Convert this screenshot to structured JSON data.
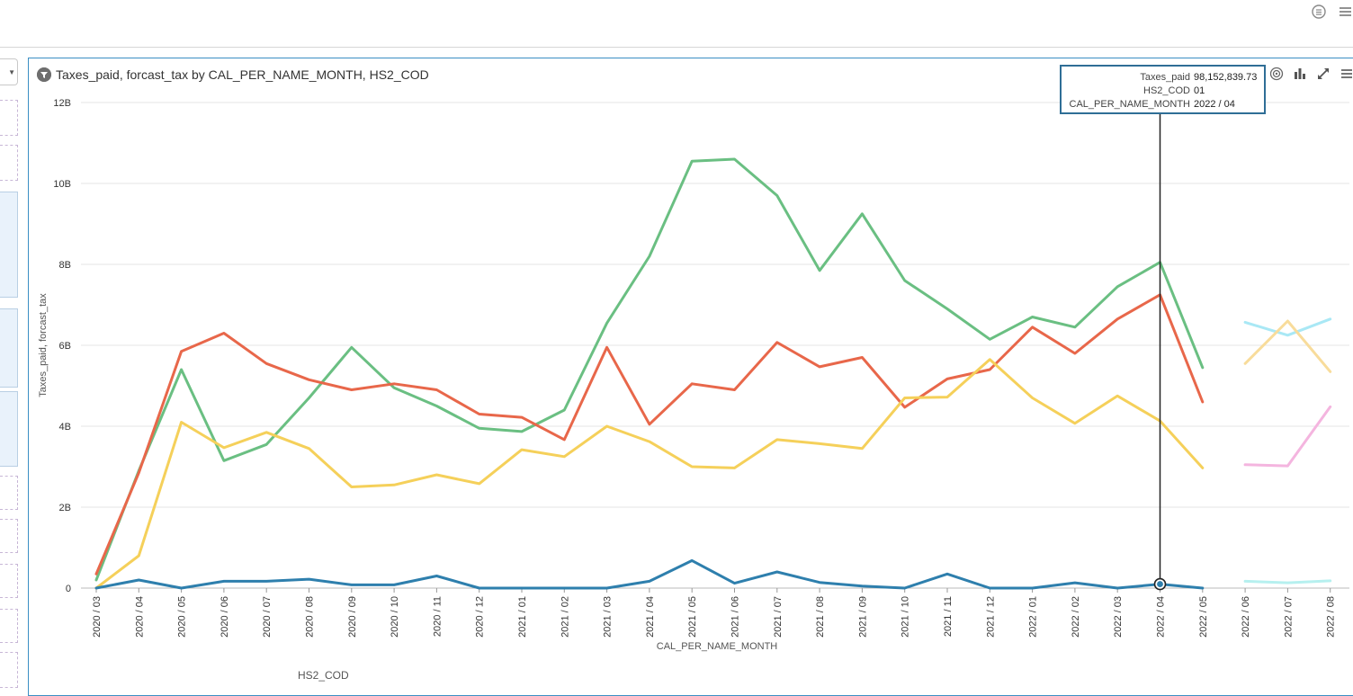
{
  "topbar": {
    "icons": [
      "list-circle-icon",
      "hamburger-menu-icon"
    ]
  },
  "left_rail": {
    "dropdown_icon": "chevron-down-icon"
  },
  "panel": {
    "title": "Taxes_paid, forcast_tax by CAL_PER_NAME_MONTH, HS2_COD",
    "title_icon": "filter-icon",
    "tools": [
      "target-icon",
      "bar-chart-icon",
      "expand-icon",
      "menu-icon"
    ]
  },
  "tooltip": {
    "rows": [
      {
        "key": "Taxes_paid",
        "value": "98,152,839.73"
      },
      {
        "key": "HS2_COD",
        "value": "01"
      },
      {
        "key": "CAL_PER_NAME_MONTH",
        "value": "2022 / 04"
      }
    ]
  },
  "legend": {
    "title": "HS2_COD"
  },
  "chart_data": {
    "type": "line",
    "title": "Taxes_paid, forcast_tax by CAL_PER_NAME_MONTH, HS2_COD",
    "xlabel": "CAL_PER_NAME_MONTH",
    "ylabel": "Taxes_paid, forcast_tax",
    "ylim": [
      0,
      12000000000
    ],
    "y_ticks": [
      {
        "value": 0,
        "label": "0"
      },
      {
        "value": 2000000000,
        "label": "2B"
      },
      {
        "value": 4000000000,
        "label": "4B"
      },
      {
        "value": 6000000000,
        "label": "6B"
      },
      {
        "value": 8000000000,
        "label": "8B"
      },
      {
        "value": 10000000000,
        "label": "10B"
      },
      {
        "value": 12000000000,
        "label": "12B"
      }
    ],
    "grid": true,
    "categories": [
      "2020 / 03",
      "2020 / 04",
      "2020 / 05",
      "2020 / 06",
      "2020 / 07",
      "2020 / 08",
      "2020 / 09",
      "2020 / 10",
      "2020 / 11",
      "2020 / 12",
      "2021 / 01",
      "2021 / 02",
      "2021 / 03",
      "2021 / 04",
      "2021 / 05",
      "2021 / 06",
      "2021 / 07",
      "2021 / 08",
      "2021 / 09",
      "2021 / 10",
      "2021 / 11",
      "2021 / 12",
      "2022 / 01",
      "2022 / 02",
      "2022 / 03",
      "2022 / 04",
      "2022 / 05",
      "2022 / 06",
      "2022 / 07",
      "2022 / 08"
    ],
    "series": [
      {
        "color": "#6abf82",
        "values": [
          0.2,
          2.9,
          5.4,
          3.15,
          3.55,
          4.7,
          5.95,
          4.95,
          4.5,
          3.95,
          3.87,
          4.4,
          6.55,
          8.2,
          10.55,
          10.6,
          9.7,
          7.85,
          9.25,
          7.6,
          6.9,
          6.15,
          6.7,
          6.45,
          7.45,
          8.05,
          5.45,
          null,
          null,
          null
        ]
      },
      {
        "color": "#e8674a",
        "values": [
          0.35,
          2.85,
          5.85,
          6.3,
          5.55,
          5.15,
          4.9,
          5.05,
          4.9,
          4.3,
          4.22,
          3.67,
          5.95,
          4.05,
          5.05,
          4.9,
          6.07,
          5.47,
          5.7,
          4.47,
          5.17,
          5.4,
          6.45,
          5.8,
          6.65,
          7.25,
          4.6,
          null,
          null,
          null
        ]
      },
      {
        "color": "#f5d05a",
        "values": [
          0.0,
          0.8,
          4.1,
          3.47,
          3.85,
          3.45,
          2.5,
          2.55,
          2.8,
          2.58,
          3.42,
          3.25,
          4.0,
          3.62,
          3.0,
          2.97,
          3.67,
          3.57,
          3.45,
          4.7,
          4.72,
          5.65,
          4.7,
          4.07,
          4.75,
          4.13,
          2.97,
          null,
          null,
          null
        ]
      },
      {
        "color": "#2e7fad",
        "values": [
          0.0,
          0.2,
          0.0,
          0.17,
          0.17,
          0.22,
          0.08,
          0.08,
          0.3,
          0.0,
          0.0,
          0.0,
          0.0,
          0.17,
          0.68,
          0.12,
          0.4,
          0.14,
          0.05,
          0.0,
          0.35,
          0.0,
          0.0,
          0.13,
          0.0,
          0.098,
          0.0,
          null,
          null,
          null
        ]
      },
      {
        "color": "#a9e8f5",
        "values": [
          null,
          null,
          null,
          null,
          null,
          null,
          null,
          null,
          null,
          null,
          null,
          null,
          null,
          null,
          null,
          null,
          null,
          null,
          null,
          null,
          null,
          null,
          null,
          null,
          null,
          null,
          null,
          6.57,
          6.25,
          6.65
        ]
      },
      {
        "color": "#f8dc9b",
        "values": [
          null,
          null,
          null,
          null,
          null,
          null,
          null,
          null,
          null,
          null,
          null,
          null,
          null,
          null,
          null,
          null,
          null,
          null,
          null,
          null,
          null,
          null,
          null,
          null,
          null,
          null,
          null,
          5.55,
          6.6,
          5.35
        ]
      },
      {
        "color": "#f4b5df",
        "values": [
          null,
          null,
          null,
          null,
          null,
          null,
          null,
          null,
          null,
          null,
          null,
          null,
          null,
          null,
          null,
          null,
          null,
          null,
          null,
          null,
          null,
          null,
          null,
          null,
          null,
          null,
          null,
          3.05,
          3.02,
          4.48
        ]
      },
      {
        "color": "#b6f0ef",
        "values": [
          null,
          null,
          null,
          null,
          null,
          null,
          null,
          null,
          null,
          null,
          null,
          null,
          null,
          null,
          null,
          null,
          null,
          null,
          null,
          null,
          null,
          null,
          null,
          null,
          null,
          null,
          null,
          0.17,
          0.13,
          0.18
        ]
      }
    ],
    "value_unit_note": "values in billions",
    "highlight": {
      "series_index": 3,
      "category": "2022 / 04",
      "value": 98152839.73
    }
  }
}
